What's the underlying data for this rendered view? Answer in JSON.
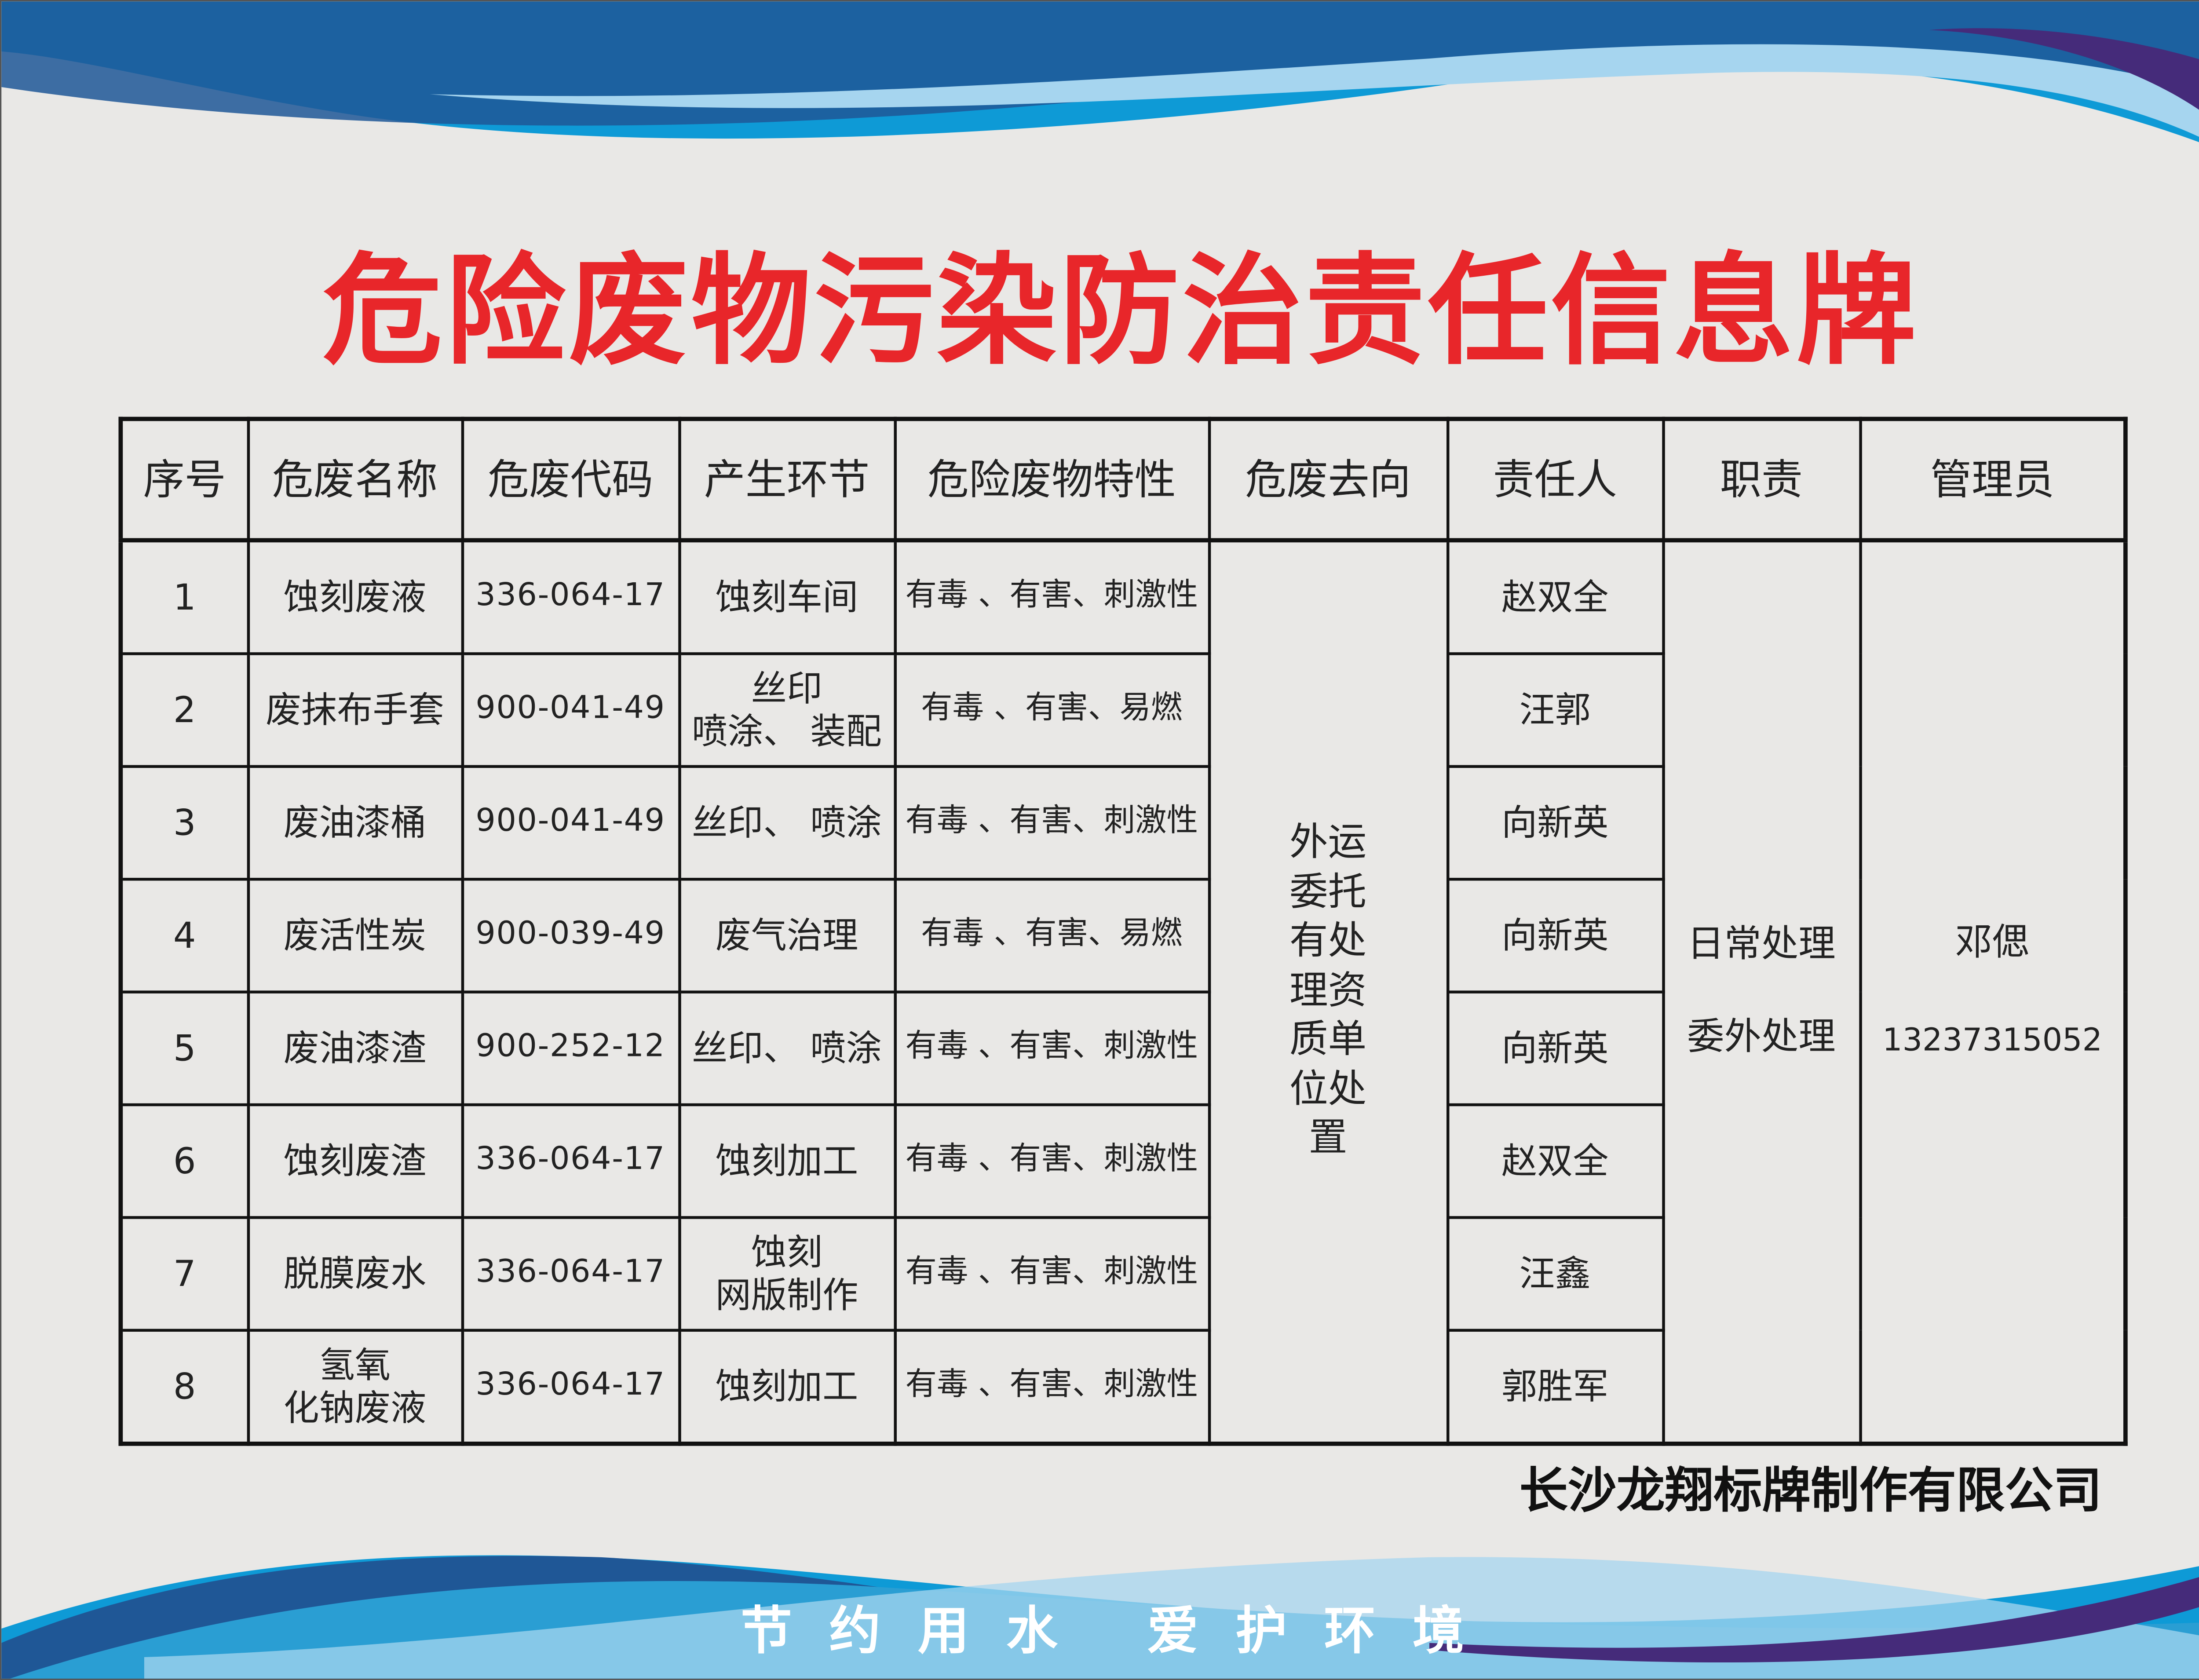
{
  "title": "危险废物污染防治责任信息牌",
  "colors": {
    "title": "#e8262a",
    "wave_dark": "#1f5796",
    "wave_mid": "#0e9ad6",
    "wave_light": "#a6d5ef",
    "wave_purple": "#452b7a"
  },
  "table": {
    "headers": [
      "序号",
      "危废名称",
      "危废代码",
      "产生环节",
      "危险废物特性",
      "危废去向",
      "责任人",
      "职责",
      "管理员"
    ],
    "rows": [
      {
        "no": "1",
        "name": "蚀刻废液",
        "code": "336-064-17",
        "stage": "蚀刻车间",
        "property": "有毒 、有害、刺激性",
        "person": "赵双全"
      },
      {
        "no": "2",
        "name": "废抹布手套",
        "code": "900-041-49",
        "stage": "丝印\n喷涂、 装配",
        "property": "有毒 、有害、易燃",
        "person": "汪郭"
      },
      {
        "no": "3",
        "name": "废油漆桶",
        "code": "900-041-49",
        "stage": "丝印、 喷涂",
        "property": "有毒 、有害、刺激性",
        "person": "向新英"
      },
      {
        "no": "4",
        "name": "废活性炭",
        "code": "900-039-49",
        "stage": "废气治理",
        "property": "有毒 、有害、易燃",
        "person": "向新英"
      },
      {
        "no": "5",
        "name": "废油漆渣",
        "code": "900-252-12",
        "stage": "丝印、 喷涂",
        "property": "有毒 、有害、刺激性",
        "person": "向新英"
      },
      {
        "no": "6",
        "name": "蚀刻废渣",
        "code": "336-064-17",
        "stage": "蚀刻加工",
        "property": "有毒 、有害、刺激性",
        "person": "赵双全"
      },
      {
        "no": "7",
        "name": "脱膜废水",
        "code": "336-064-17",
        "stage": "蚀刻\n网版制作",
        "property": "有毒 、有害、刺激性",
        "person": "汪鑫"
      },
      {
        "no": "8",
        "name": "氢氧\n化钠废液",
        "code": "336-064-17",
        "stage": "蚀刻加工",
        "property": "有毒 、有害、刺激性",
        "person": "郭胜军"
      }
    ],
    "destination": "外运\n委托\n有处\n理资\n质单\n位处\n置",
    "duty": [
      "日常处理",
      "委外处理"
    ],
    "manager": {
      "name": "邓偲",
      "phone": "13237315052"
    }
  },
  "company": "长沙龙翔标牌制作有限公司",
  "slogan": [
    "节约用水",
    "爱护环境"
  ]
}
